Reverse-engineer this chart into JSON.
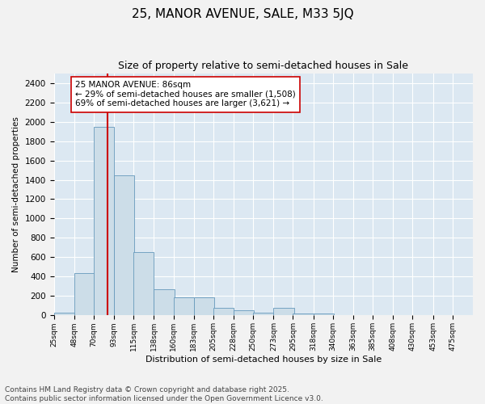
{
  "title": "25, MANOR AVENUE, SALE, M33 5JQ",
  "subtitle": "Size of property relative to semi-detached houses in Sale",
  "xlabel": "Distribution of semi-detached houses by size in Sale",
  "ylabel": "Number of semi-detached properties",
  "bins": [
    25,
    48,
    70,
    93,
    115,
    138,
    160,
    183,
    205,
    228,
    250,
    273,
    295,
    318,
    340,
    363,
    385,
    408,
    430,
    453,
    475
  ],
  "values": [
    30,
    440,
    1950,
    1450,
    650,
    270,
    185,
    185,
    75,
    50,
    30,
    75,
    20,
    20,
    5,
    0,
    0,
    0,
    0,
    0,
    0
  ],
  "bar_color": "#ccdde8",
  "bar_edge_color": "#6699bb",
  "vline_x": 86,
  "vline_color": "#cc0000",
  "annotation_text": "25 MANOR AVENUE: 86sqm\n← 29% of semi-detached houses are smaller (1,508)\n69% of semi-detached houses are larger (3,621) →",
  "annotation_box_color": "#ffffff",
  "annotation_box_edge": "#cc0000",
  "ylim": [
    0,
    2500
  ],
  "yticks": [
    0,
    200,
    400,
    600,
    800,
    1000,
    1200,
    1400,
    1600,
    1800,
    2000,
    2200,
    2400
  ],
  "plot_bg_color": "#dce8f2",
  "fig_bg_color": "#f2f2f2",
  "grid_color": "#ffffff",
  "footnote": "Contains HM Land Registry data © Crown copyright and database right 2025.\nContains public sector information licensed under the Open Government Licence v3.0.",
  "title_fontsize": 11,
  "subtitle_fontsize": 9,
  "annotation_fontsize": 7.5,
  "footnote_fontsize": 6.5,
  "ylabel_fontsize": 7.5,
  "xlabel_fontsize": 8
}
